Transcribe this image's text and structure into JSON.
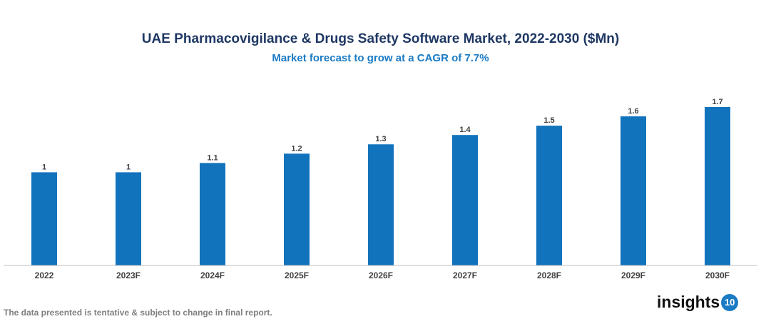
{
  "chart_data": {
    "type": "bar",
    "title": "UAE Pharmacovigilance & Drugs Safety Software Market, 2022-2030 ($Mn)",
    "subtitle": "Market forecast to grow at a CAGR of 7.7%",
    "categories": [
      "2022",
      "2023F",
      "2024F",
      "2025F",
      "2026F",
      "2027F",
      "2028F",
      "2029F",
      "2030F"
    ],
    "values": [
      1,
      1,
      1.1,
      1.2,
      1.3,
      1.4,
      1.5,
      1.6,
      1.7
    ],
    "xlabel": "",
    "ylabel": "",
    "ylim": [
      0,
      1.7
    ],
    "grid": false,
    "bar_color": "#1273bd"
  },
  "footer": "The data presented is tentative & subject to change in final report.",
  "logo": {
    "text": "insights",
    "badge": "10"
  }
}
